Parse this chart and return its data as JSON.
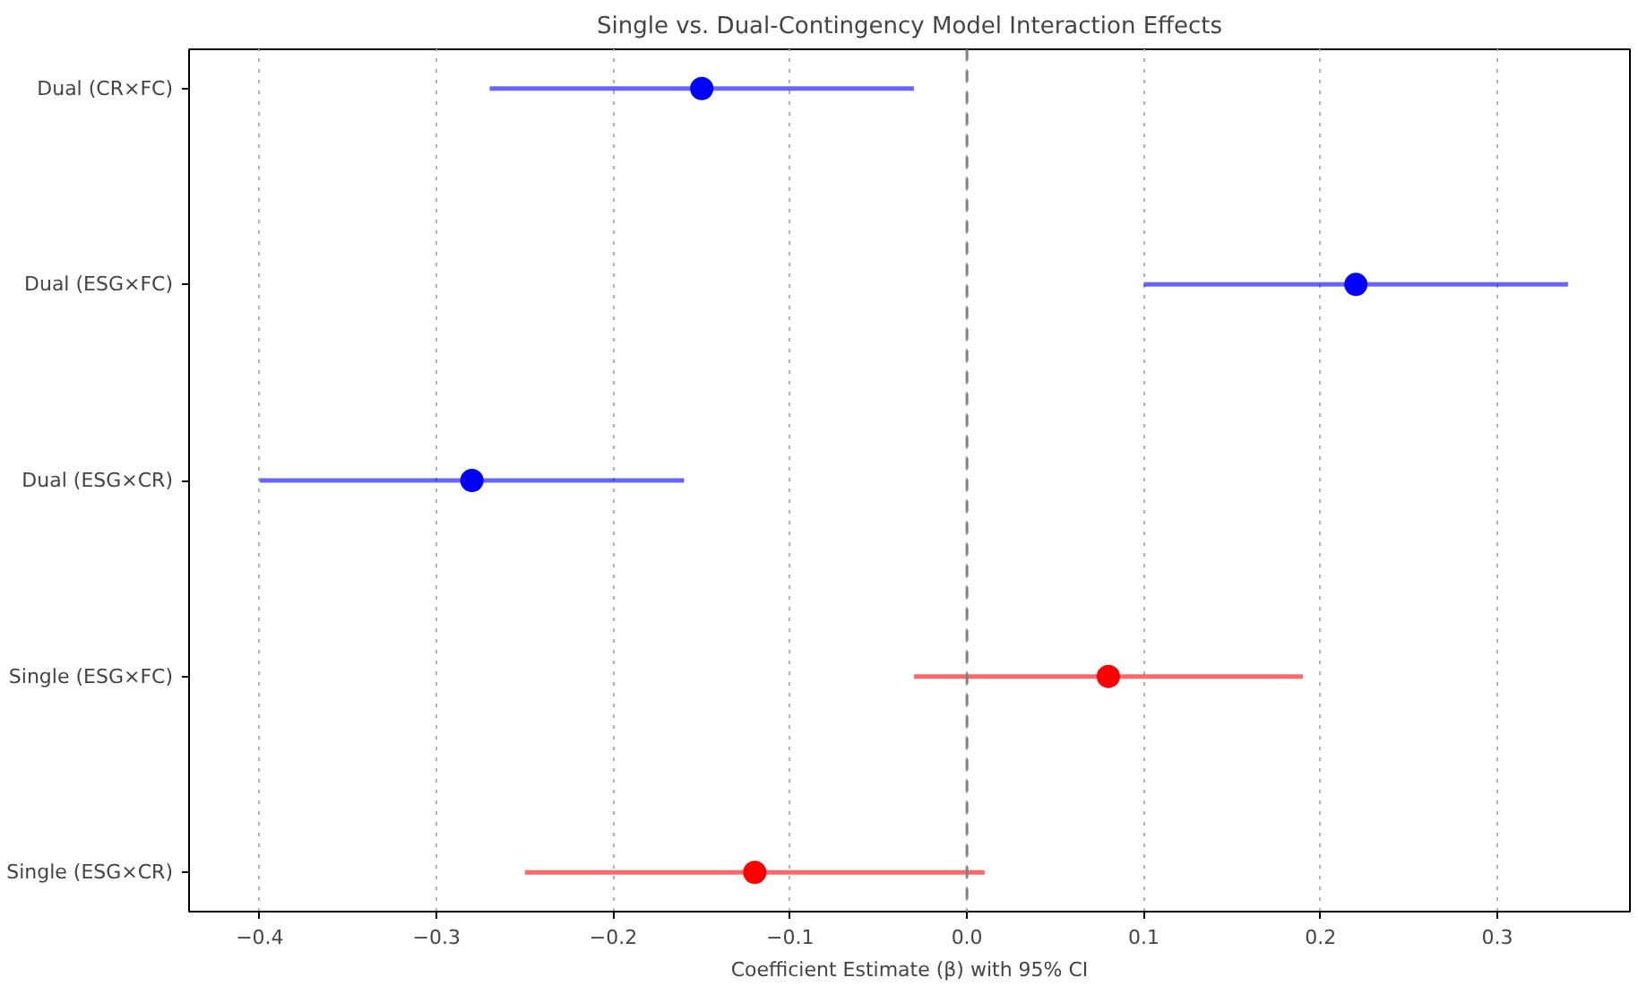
{
  "chart_data": {
    "type": "scatter",
    "orientation": "horizontal",
    "title": "Single vs. Dual-Contingency Model Interaction Effects",
    "xlabel": "Coefficient Estimate (β) with 95% CI",
    "categories": [
      "Dual (CR×FC)",
      "Dual (ESG×FC)",
      "Dual (ESG×CR)",
      "Single (ESG×FC)",
      "Single (ESG×CR)"
    ],
    "values": [
      -0.15,
      0.22,
      -0.28,
      0.08,
      -0.12
    ],
    "errors": [
      [
        -0.27,
        -0.03
      ],
      [
        0.1,
        0.34
      ],
      [
        -0.4,
        -0.16
      ],
      [
        -0.03,
        0.19
      ],
      [
        -0.25,
        0.01
      ]
    ],
    "colors": [
      "#0000ff",
      "#0000ff",
      "#0000ff",
      "#ff0000",
      "#ff0000"
    ],
    "marker": "circle",
    "xlim": [
      -0.44,
      0.375
    ],
    "xticks": [
      {
        "value": -0.4,
        "label": "−0.4"
      },
      {
        "value": -0.3,
        "label": "−0.3"
      },
      {
        "value": -0.2,
        "label": "−0.2"
      },
      {
        "value": -0.1,
        "label": "−0.1"
      },
      {
        "value": 0,
        "label": "0.0"
      },
      {
        "value": 0.1,
        "label": "0.1"
      },
      {
        "value": 0.2,
        "label": "0.2"
      },
      {
        "value": 0.3,
        "label": "0.3"
      }
    ],
    "ref_lines": [
      {
        "axis": "x",
        "value": 0,
        "color": "#808080",
        "line_style": "dashed"
      }
    ],
    "grid": "x"
  }
}
